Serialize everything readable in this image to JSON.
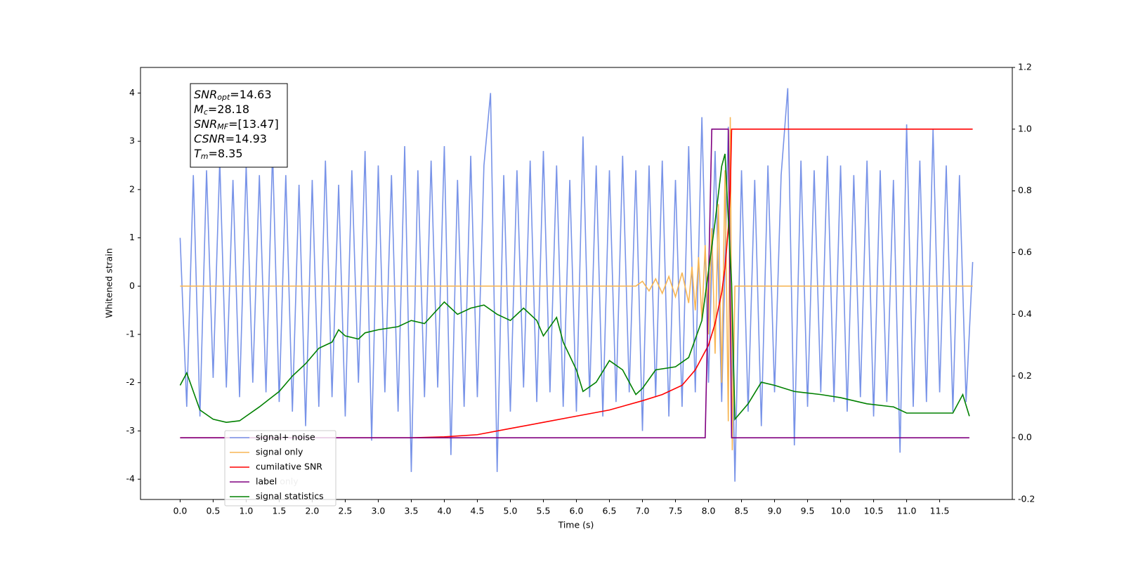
{
  "chart_data": {
    "type": "line",
    "xlabel": "Time (s)",
    "ylabel": "Whitened strain",
    "xlim": [
      -0.6,
      12.6
    ],
    "ylim": [
      -4.42,
      4.53
    ],
    "y2lim": [
      -0.2,
      1.2
    ],
    "xticks": [
      {
        "value": 0,
        "label": "0.0"
      },
      {
        "value": 0.5,
        "label": "0.5"
      },
      {
        "value": 1,
        "label": "1.0"
      },
      {
        "value": 1.5,
        "label": "1.5"
      },
      {
        "value": 2,
        "label": "2.0"
      },
      {
        "value": 2.5,
        "label": "2.5"
      },
      {
        "value": 3,
        "label": "3.0"
      },
      {
        "value": 3.5,
        "label": "3.5"
      },
      {
        "value": 4,
        "label": "4.0"
      },
      {
        "value": 4.5,
        "label": "4.5"
      },
      {
        "value": 5,
        "label": "5.0"
      },
      {
        "value": 5.5,
        "label": "5.5"
      },
      {
        "value": 6,
        "label": "6.0"
      },
      {
        "value": 6.5,
        "label": "6.5"
      },
      {
        "value": 7,
        "label": "7.0"
      },
      {
        "value": 7.5,
        "label": "7.5"
      },
      {
        "value": 8,
        "label": "8.0"
      },
      {
        "value": 8.5,
        "label": "8.5"
      },
      {
        "value": 9,
        "label": "9.0"
      },
      {
        "value": 9.5,
        "label": "9.5"
      },
      {
        "value": 10,
        "label": "10.0"
      },
      {
        "value": 10.5,
        "label": "10.5"
      },
      {
        "value": 11,
        "label": "11.0"
      },
      {
        "value": 11.5,
        "label": "11.5"
      }
    ],
    "yticks": [
      -4,
      -3,
      -2,
      -1,
      0,
      1,
      2,
      3,
      4
    ],
    "y2ticks": [
      -0.2,
      {
        "value": 0,
        "label": "0.0"
      },
      0.2,
      0.4,
      0.6,
      0.8,
      {
        "value": 1,
        "label": "1.0"
      },
      1.2
    ],
    "grid": false,
    "legend": "lower left",
    "overlapped_legend_text": "label only",
    "annotations": [
      {
        "base": "SNR",
        "sub": "opt",
        "text": "=14.63"
      },
      {
        "base": "M",
        "sub": "c",
        "text": "=28.18"
      },
      {
        "base": "SNR",
        "sub": "MF",
        "text": "=[13.47]"
      },
      {
        "base": "CSNR",
        "text": "=14.93"
      },
      {
        "base": "T",
        "sub": "m",
        "text": "=8.35"
      }
    ],
    "series": [
      {
        "name": "signal+ noise",
        "color": "#7893e8",
        "x": [
          0,
          0.1,
          0.2,
          0.3,
          0.4,
          0.5,
          0.6,
          0.7,
          0.8,
          0.9,
          1,
          1.1,
          1.2,
          1.3,
          1.4,
          1.5,
          1.6,
          1.7,
          1.8,
          1.9,
          2,
          2.1,
          2.2,
          2.3,
          2.4,
          2.5,
          2.6,
          2.7,
          2.8,
          2.9,
          3,
          3.1,
          3.2,
          3.3,
          3.4,
          3.5,
          3.6,
          3.7,
          3.8,
          3.9,
          4,
          4.1,
          4.2,
          4.3,
          4.4,
          4.5,
          4.6,
          4.7,
          4.8,
          4.9,
          5,
          5.1,
          5.2,
          5.3,
          5.4,
          5.5,
          5.6,
          5.7,
          5.8,
          5.9,
          6,
          6.1,
          6.2,
          6.3,
          6.4,
          6.5,
          6.6,
          6.7,
          6.8,
          6.9,
          7,
          7.1,
          7.2,
          7.3,
          7.4,
          7.5,
          7.6,
          7.7,
          7.8,
          7.9,
          8,
          8.1,
          8.2,
          8.3,
          8.4,
          8.5,
          8.6,
          8.7,
          8.8,
          8.9,
          9,
          9.1,
          9.2,
          9.3,
          9.4,
          9.5,
          9.6,
          9.7,
          9.8,
          9.9,
          10,
          10.1,
          10.2,
          10.3,
          10.4,
          10.5,
          10.6,
          10.7,
          10.8,
          10.9,
          11,
          11.1,
          11.2,
          11.3,
          11.4,
          11.5,
          11.6,
          11.7,
          11.8,
          11.9,
          12
        ],
        "values": [
          1.0,
          -2.5,
          2.3,
          -2.7,
          2.4,
          -1.9,
          2.6,
          -2.1,
          2.2,
          -2.3,
          2.5,
          -2.0,
          2.3,
          -2.2,
          2.8,
          -2.4,
          2.3,
          -2.6,
          2.1,
          -2.9,
          2.2,
          -2.5,
          2.6,
          -2.3,
          2.1,
          -2.7,
          2.4,
          -2.0,
          2.8,
          -3.2,
          2.5,
          -2.2,
          2.3,
          -2.6,
          2.9,
          -3.85,
          2.4,
          -2.3,
          2.6,
          -2.1,
          2.9,
          -3.5,
          2.2,
          -2.5,
          2.7,
          -2.3,
          2.5,
          4.0,
          -3.85,
          2.3,
          -2.6,
          2.4,
          -2.1,
          2.6,
          -2.4,
          2.8,
          -2.2,
          2.5,
          -2.5,
          2.2,
          -2.6,
          3.1,
          -2.3,
          2.5,
          -2.7,
          2.4,
          -2.4,
          2.7,
          -2.2,
          2.4,
          -3.0,
          2.5,
          -2.3,
          2.6,
          -2.7,
          2.2,
          -2.5,
          2.9,
          -2.2,
          3.5,
          -2.0,
          2.8,
          -2.4,
          3.3,
          -4.05,
          2.4,
          -2.6,
          2.2,
          -2.9,
          2.5,
          -2.2,
          2.3,
          4.1,
          -3.3,
          2.6,
          -2.5,
          2.4,
          -2.2,
          2.7,
          -2.4,
          2.5,
          -2.6,
          2.3,
          -2.3,
          2.6,
          -2.7,
          2.4,
          -2.4,
          2.2,
          -3.45,
          3.35,
          -2.5,
          2.6,
          -2.4,
          3.25,
          -2.2,
          2.5,
          -2.6,
          2.3,
          -2.4,
          0.5
        ]
      },
      {
        "name": "signal only",
        "color": "#f7b655",
        "x": [
          0,
          6.9,
          7.0,
          7.1,
          7.2,
          7.3,
          7.4,
          7.5,
          7.6,
          7.7,
          7.75,
          7.8,
          7.85,
          7.9,
          7.95,
          8.0,
          8.05,
          8.1,
          8.15,
          8.2,
          8.25,
          8.3,
          8.33,
          8.36,
          8.4,
          12.0
        ],
        "values": [
          0,
          0,
          0.1,
          -0.1,
          0.15,
          -0.15,
          0.2,
          -0.22,
          0.28,
          -0.35,
          0.4,
          -0.5,
          0.6,
          -0.7,
          0.85,
          -1.0,
          1.2,
          -1.4,
          1.7,
          -2.0,
          2.4,
          -2.8,
          3.5,
          -3.4,
          0,
          0
        ]
      },
      {
        "name": "cumilative SNR",
        "color": "#ff0000",
        "axis": "y2",
        "x": [
          0,
          3.5,
          4.0,
          4.5,
          5.0,
          5.5,
          6.0,
          6.5,
          7.0,
          7.3,
          7.6,
          7.8,
          8.0,
          8.1,
          8.2,
          8.25,
          8.3,
          8.33,
          8.35,
          12.0
        ],
        "values": [
          0,
          0,
          0.003,
          0.01,
          0.03,
          0.05,
          0.07,
          0.09,
          0.12,
          0.14,
          0.17,
          0.22,
          0.3,
          0.37,
          0.47,
          0.55,
          0.68,
          0.8,
          1.0,
          1.0
        ]
      },
      {
        "name": "label",
        "color": "#800080",
        "axis": "y2",
        "x": [
          0,
          7.95,
          8.05,
          8.3,
          8.35,
          11.95
        ],
        "values": [
          0,
          0,
          1,
          1,
          0,
          0
        ]
      },
      {
        "name": "signal statistics",
        "color": "#008000",
        "axis": "y2",
        "x": [
          0,
          0.1,
          0.2,
          0.3,
          0.5,
          0.7,
          0.9,
          1.0,
          1.2,
          1.5,
          1.7,
          1.9,
          2.1,
          2.2,
          2.3,
          2.4,
          2.5,
          2.7,
          2.8,
          3.0,
          3.3,
          3.5,
          3.7,
          4.0,
          4.2,
          4.4,
          4.6,
          4.8,
          5.0,
          5.2,
          5.4,
          5.5,
          5.7,
          5.8,
          6.0,
          6.1,
          6.3,
          6.5,
          6.7,
          6.9,
          7.0,
          7.2,
          7.5,
          7.7,
          7.9,
          8.1,
          8.2,
          8.25,
          8.35,
          8.4,
          8.6,
          8.8,
          9.0,
          9.3,
          9.7,
          10.0,
          10.4,
          10.8,
          11.0,
          11.4,
          11.7,
          11.85,
          11.95
        ],
        "values": [
          0.17,
          0.21,
          0.15,
          0.09,
          0.06,
          0.05,
          0.055,
          0.07,
          0.1,
          0.15,
          0.2,
          0.24,
          0.29,
          0.3,
          0.31,
          0.35,
          0.33,
          0.32,
          0.34,
          0.35,
          0.36,
          0.38,
          0.37,
          0.44,
          0.4,
          0.42,
          0.43,
          0.4,
          0.38,
          0.42,
          0.38,
          0.33,
          0.39,
          0.31,
          0.22,
          0.15,
          0.18,
          0.25,
          0.22,
          0.14,
          0.16,
          0.22,
          0.23,
          0.26,
          0.38,
          0.7,
          0.88,
          0.92,
          0.5,
          0.06,
          0.11,
          0.18,
          0.17,
          0.15,
          0.14,
          0.13,
          0.11,
          0.1,
          0.08,
          0.08,
          0.08,
          0.14,
          0.07
        ]
      }
    ]
  }
}
